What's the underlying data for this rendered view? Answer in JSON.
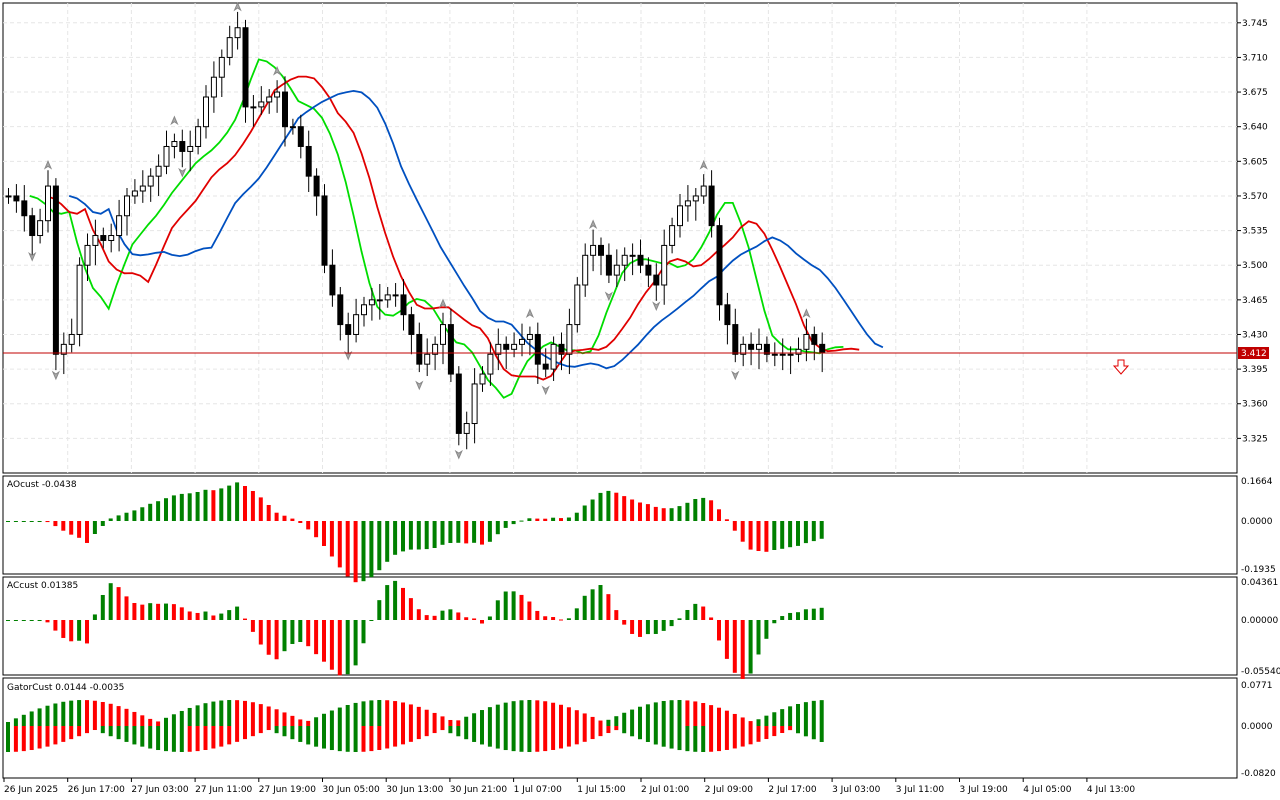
{
  "main": {
    "price_ticks": [
      "3.745",
      "3.710",
      "3.675",
      "3.640",
      "3.605",
      "3.570",
      "3.535",
      "3.500",
      "3.465",
      "3.430",
      "3.395",
      "3.360",
      "3.325"
    ],
    "price_tick_values": [
      3.745,
      3.71,
      3.675,
      3.64,
      3.605,
      3.57,
      3.535,
      3.5,
      3.465,
      3.43,
      3.395,
      3.36,
      3.325
    ],
    "price_range": [
      3.29,
      3.765
    ],
    "current_price": "3.412",
    "current_price_value": 3.412,
    "colors": {
      "bull": "#ffffff",
      "bear": "#000000",
      "line_current": "#c00000",
      "ma_green": "#00dd00",
      "ma_red": "#e00000",
      "ma_blue": "#0050c0"
    }
  },
  "indicators": {
    "ao": {
      "label": "AOcust -0.0438",
      "ticks": [
        "0.1664",
        "0.0000",
        "-0.1935"
      ],
      "range": [
        -0.1935,
        0.1664
      ]
    },
    "ac": {
      "label": "ACcust 0.01385",
      "ticks": [
        "0.04361",
        "0.00000",
        "-0.05540"
      ],
      "range": [
        -0.0554,
        0.04361
      ]
    },
    "gator": {
      "label": "GatorCust 0.0144 -0.0035",
      "ticks": [
        "0.0771",
        "0.0000",
        "-0.0820"
      ],
      "range": [
        -0.082,
        0.0771
      ]
    }
  },
  "time_axis": {
    "labels": [
      "26 Jun 2025",
      "26 Jun 17:00",
      "27 Jun 03:00",
      "27 Jun 11:00",
      "27 Jun 19:00",
      "30 Jun 05:00",
      "30 Jun 13:00",
      "30 Jun 21:00",
      "1 Jul 07:00",
      "1 Jul 15:00",
      "2 Jul 01:00",
      "2 Jul 09:00",
      "2 Jul 17:00",
      "3 Jul 03:00",
      "3 Jul 11:00",
      "3 Jul 19:00",
      "4 Jul 05:00",
      "4 Jul 13:00"
    ]
  },
  "chart_data": {
    "type": "candlestick",
    "ohlc_close_approx": [
      3.57,
      3.565,
      3.55,
      3.53,
      3.545,
      3.58,
      3.41,
      3.42,
      3.43,
      3.5,
      3.52,
      3.53,
      3.525,
      3.53,
      3.55,
      3.57,
      3.575,
      3.58,
      3.59,
      3.6,
      3.62,
      3.625,
      3.615,
      3.62,
      3.64,
      3.67,
      3.69,
      3.71,
      3.73,
      3.74,
      3.66,
      3.66,
      3.665,
      3.67,
      3.675,
      3.64,
      3.64,
      3.62,
      3.59,
      3.57,
      3.5,
      3.47,
      3.44,
      3.43,
      3.45,
      3.46,
      3.465,
      3.465,
      3.47,
      3.47,
      3.45,
      3.43,
      3.4,
      3.41,
      3.42,
      3.44,
      3.39,
      3.33,
      3.34,
      3.38,
      3.39,
      3.41,
      3.42,
      3.415,
      3.42,
      3.425,
      3.43,
      3.4,
      3.395,
      3.42,
      3.41,
      3.44,
      3.48,
      3.51,
      3.52,
      3.51,
      3.49,
      3.5,
      3.51,
      3.51,
      3.5,
      3.49,
      3.48,
      3.52,
      3.54,
      3.56,
      3.565,
      3.57,
      3.58,
      3.54,
      3.46,
      3.44,
      3.41,
      3.42,
      3.415,
      3.42,
      3.41,
      3.41,
      3.41,
      3.41,
      3.415,
      3.43,
      3.42,
      3.412
    ]
  }
}
